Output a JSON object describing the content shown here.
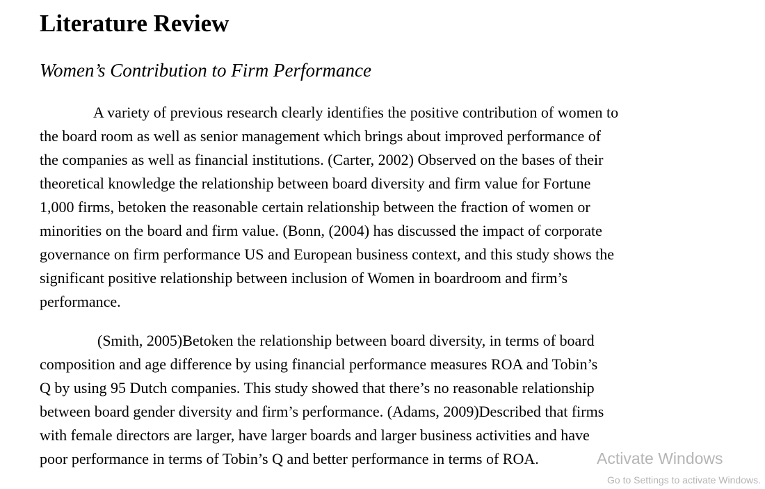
{
  "document": {
    "heading": "Literature Review",
    "subheading": "Women’s Contribution to Firm Performance",
    "paragraphs": [
      {
        "lines": [
          "A variety of previous research clearly identifies the positive contribution of women to",
          "the board room as well as senior management which brings about improved performance of",
          "the companies as well as financial institutions. (Carter, 2002) Observed on the bases of their",
          "theoretical knowledge the relationship between board diversity and firm value for Fortune",
          "1,000 firms, betoken the reasonable certain relationship between the fraction of women or",
          "minorities on the board and firm value. (Bonn, (2004) has discussed the impact of corporate",
          "governance on firm performance US and European business context, and this study shows the",
          "significant positive relationship between inclusion of Women in boardroom and firm’s",
          "performance."
        ]
      },
      {
        "lines": [
          "(Smith, 2005)Betoken the relationship between board diversity, in terms of board",
          "composition and age difference by using financial performance measures ROA and Tobin’s",
          "Q by using 95 Dutch companies. This study showed that there’s no reasonable relationship",
          "between board gender diversity and firm’s performance. (Adams, 2009)Described that firms",
          "with female directors are larger, have larger boards and larger business activities and have",
          "poor performance in terms of Tobin’s Q and better performance in terms of ROA."
        ]
      }
    ]
  },
  "watermark": {
    "title": "Activate Windows",
    "subtitle": "Go to Settings to activate Windows."
  }
}
